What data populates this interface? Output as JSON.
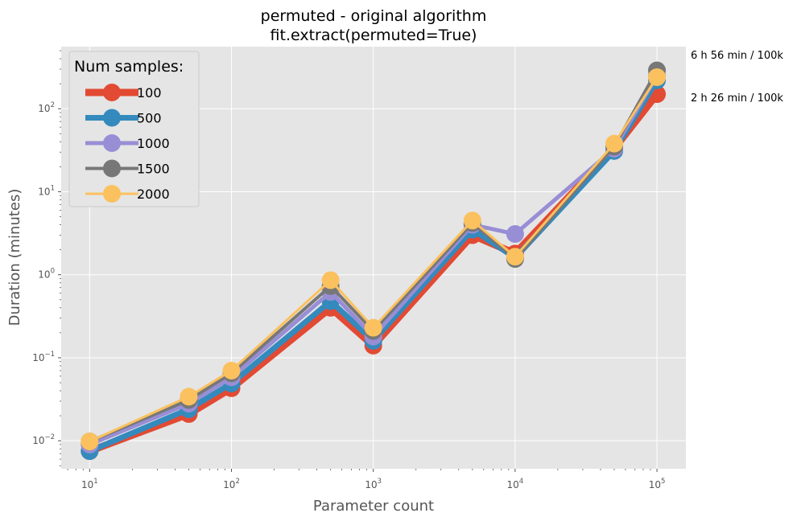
{
  "chart_data": {
    "type": "line",
    "title": "permuted - original algorithm",
    "subtitle": "fit.extract(permuted=True)",
    "xlabel": "Parameter count",
    "ylabel": "Duration (minutes)",
    "xscale": "log",
    "yscale": "log",
    "xlim": [
      6.3,
      160000
    ],
    "ylim": [
      0.0046,
      560
    ],
    "grid": true,
    "legend_title": "Num samples:",
    "legend_position": "top-left",
    "x": [
      10,
      50,
      100,
      500,
      1000,
      5000,
      10000,
      50000,
      100000
    ],
    "x_ticks": [
      {
        "value": 10,
        "base": "10",
        "exp": "1"
      },
      {
        "value": 100,
        "base": "10",
        "exp": "2"
      },
      {
        "value": 1000,
        "base": "10",
        "exp": "3"
      },
      {
        "value": 10000,
        "base": "10",
        "exp": "4"
      },
      {
        "value": 100000,
        "base": "10",
        "exp": "5"
      }
    ],
    "y_ticks": [
      {
        "value": 0.01,
        "base": "10",
        "exp": "−2"
      },
      {
        "value": 0.1,
        "base": "10",
        "exp": "−1"
      },
      {
        "value": 1,
        "base": "10",
        "exp": "0"
      },
      {
        "value": 10,
        "base": "10",
        "exp": "1"
      },
      {
        "value": 100,
        "base": "10",
        "exp": "2"
      }
    ],
    "series": [
      {
        "name": "100",
        "color": "#E24A33",
        "values": [
          0.0075,
          0.021,
          0.043,
          0.4,
          0.14,
          3.0,
          1.8,
          33,
          150
        ]
      },
      {
        "name": "500",
        "color": "#348ABD",
        "values": [
          0.0075,
          0.024,
          0.049,
          0.48,
          0.16,
          3.5,
          1.6,
          31,
          220
        ]
      },
      {
        "name": "1000",
        "color": "#988ED5",
        "values": [
          0.009,
          0.028,
          0.058,
          0.62,
          0.18,
          4.0,
          3.1,
          33,
          250
        ]
      },
      {
        "name": "1500",
        "color": "#777777",
        "values": [
          0.0098,
          0.031,
          0.065,
          0.73,
          0.21,
          4.2,
          1.55,
          35,
          290
        ]
      },
      {
        "name": "2000",
        "color": "#FBC15E",
        "values": [
          0.0098,
          0.034,
          0.07,
          0.86,
          0.23,
          4.5,
          1.65,
          38,
          240
        ]
      }
    ],
    "annotations": [
      {
        "text": "6 h 56 min / 100k"
      },
      {
        "text": "2 h 26 min / 100k"
      }
    ]
  }
}
